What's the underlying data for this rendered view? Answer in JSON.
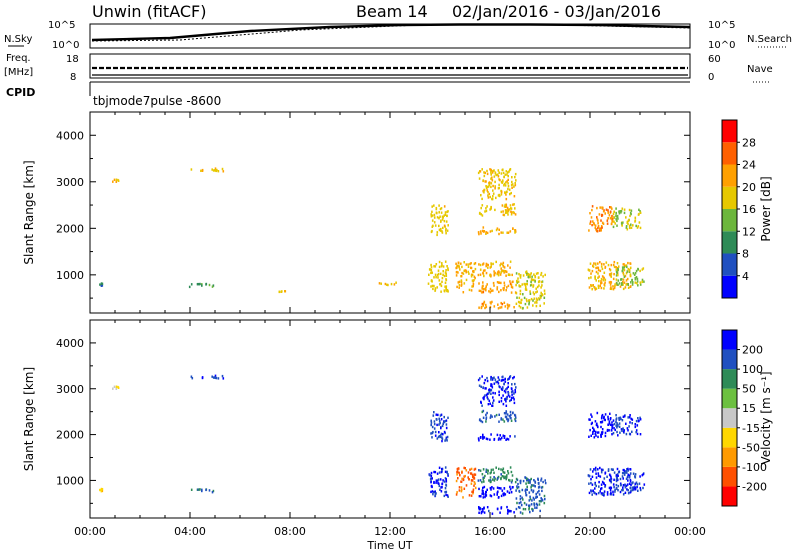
{
  "header": {
    "title": "Unwin (fitACF)",
    "beam": "Beam 14",
    "date_range": "02/Jan/2016 - 03/Jan/2016"
  },
  "top_panels": {
    "nsky_label": "N.Sky",
    "nsearch_label": "N.Search",
    "noise_ticks": [
      "10^5",
      "10^0"
    ],
    "freq_label_1": "Freq.",
    "freq_label_2": "[MHz]",
    "freq_ticks": [
      "18",
      "8"
    ],
    "nave_label": "Nave",
    "nave_ticks": [
      "60",
      "0"
    ],
    "cpid_label": "CPID",
    "cpid_value": "tbjmode7pulse  -8600"
  },
  "chart_data": [
    {
      "type": "heatmap",
      "name": "power",
      "ylabel": "Slant Range [km]",
      "xlabel": "",
      "xlim": [
        0,
        24
      ],
      "ylim": [
        180,
        4500
      ],
      "yticks": [
        "1000",
        "2000",
        "3000",
        "4000"
      ],
      "colorbar_label": "Power [dB]",
      "colorbar_ticks": [
        "4",
        "8",
        "12",
        "16",
        "20",
        "24",
        "28"
      ],
      "colorbar_range": [
        0,
        30
      ],
      "colors": [
        "#0000ff",
        "#2050c0",
        "#2e8b57",
        "#6cb63c",
        "#e6c800",
        "#ffa000",
        "#ff6000",
        "#ff0000"
      ],
      "blobs": [
        {
          "t": [
            0.3,
            0.5
          ],
          "r": [
            780,
            840
          ],
          "value": 8
        },
        {
          "t": [
            0.8,
            1.3
          ],
          "r": [
            3020,
            3080
          ],
          "value": 18
        },
        {
          "t": [
            3.9,
            5.3
          ],
          "r": [
            760,
            830
          ],
          "value": 10
        },
        {
          "t": [
            4.0,
            5.5
          ],
          "r": [
            3250,
            3320
          ],
          "value": 18
        },
        {
          "t": [
            7.5,
            7.8
          ],
          "r": [
            640,
            680
          ],
          "value": 18
        },
        {
          "t": [
            11.5,
            12.5
          ],
          "r": [
            800,
            860
          ],
          "value": 18
        },
        {
          "t": [
            13.5,
            14.3
          ],
          "r": [
            660,
            1320
          ],
          "value": 17
        },
        {
          "t": [
            13.6,
            14.3
          ],
          "r": [
            1880,
            2520
          ],
          "value": 17
        },
        {
          "t": [
            14.6,
            15.4
          ],
          "r": [
            650,
            1300
          ],
          "value": 19
        },
        {
          "t": [
            15.5,
            17.0
          ],
          "r": [
            300,
            450
          ],
          "value": 21
        },
        {
          "t": [
            15.5,
            17.0
          ],
          "r": [
            640,
            890
          ],
          "value": 21
        },
        {
          "t": [
            15.5,
            17.0
          ],
          "r": [
            980,
            1320
          ],
          "value": 19
        },
        {
          "t": [
            15.5,
            17.0
          ],
          "r": [
            1900,
            2050
          ],
          "value": 20
        },
        {
          "t": [
            15.5,
            17.0
          ],
          "r": [
            2300,
            2550
          ],
          "value": 18
        },
        {
          "t": [
            15.5,
            17.0
          ],
          "r": [
            2650,
            3300
          ],
          "value": 18
        },
        {
          "t": [
            17.0,
            18.2
          ],
          "r": [
            300,
            1100
          ],
          "value": 16
        },
        {
          "t": [
            19.9,
            20.9
          ],
          "r": [
            1960,
            2500
          ],
          "value": 22
        },
        {
          "t": [
            19.9,
            21.6
          ],
          "r": [
            700,
            1300
          ],
          "value": 19
        },
        {
          "t": [
            20.9,
            22.0
          ],
          "r": [
            2000,
            2450
          ],
          "value": 15
        },
        {
          "t": [
            21.0,
            22.2
          ],
          "r": [
            800,
            1200
          ],
          "value": 14
        }
      ]
    },
    {
      "type": "heatmap",
      "name": "velocity",
      "ylabel": "Slant Range [km]",
      "xlabel": "Time UT",
      "xlim": [
        0,
        24
      ],
      "ylim": [
        180,
        4500
      ],
      "xticks": [
        "00:00",
        "04:00",
        "08:00",
        "12:00",
        "16:00",
        "20:00",
        "00:00"
      ],
      "yticks": [
        "1000",
        "2000",
        "3000",
        "4000"
      ],
      "colorbar_label": "Velocity [m s⁻¹]",
      "colorbar_ticks": [
        "200",
        "100",
        "50",
        "15",
        "-15",
        "-50",
        "-100",
        "-200"
      ],
      "colorbar_range": [
        -250,
        250
      ],
      "colors": [
        "#ff0000",
        "#ff5000",
        "#ff9a00",
        "#ffd700",
        "#c8c8c8",
        "#6cc040",
        "#2e8b57",
        "#2050c0",
        "#0000ff"
      ],
      "blobs": [
        {
          "t": [
            0.3,
            0.5
          ],
          "r": [
            780,
            840
          ],
          "value": -60
        },
        {
          "t": [
            0.8,
            1.3
          ],
          "r": [
            3020,
            3080
          ],
          "value": -40
        },
        {
          "t": [
            3.9,
            5.3
          ],
          "r": [
            760,
            830
          ],
          "value": 150
        },
        {
          "t": [
            4.0,
            5.5
          ],
          "r": [
            3250,
            3320
          ],
          "value": 180
        },
        {
          "t": [
            13.5,
            14.3
          ],
          "r": [
            660,
            1320
          ],
          "value": 200
        },
        {
          "t": [
            13.6,
            14.3
          ],
          "r": [
            1880,
            2520
          ],
          "value": 180
        },
        {
          "t": [
            14.6,
            15.4
          ],
          "r": [
            650,
            1300
          ],
          "value": -150
        },
        {
          "t": [
            15.5,
            17.0
          ],
          "r": [
            300,
            450
          ],
          "value": 220
        },
        {
          "t": [
            15.5,
            17.0
          ],
          "r": [
            640,
            890
          ],
          "value": 230
        },
        {
          "t": [
            15.5,
            17.0
          ],
          "r": [
            980,
            1320
          ],
          "value": 120
        },
        {
          "t": [
            15.5,
            17.0
          ],
          "r": [
            1900,
            2050
          ],
          "value": 220
        },
        {
          "t": [
            15.5,
            17.0
          ],
          "r": [
            2300,
            2550
          ],
          "value": 160
        },
        {
          "t": [
            15.5,
            17.0
          ],
          "r": [
            2650,
            3300
          ],
          "value": 210
        },
        {
          "t": [
            17.0,
            18.2
          ],
          "r": [
            300,
            1100
          ],
          "value": 150
        },
        {
          "t": [
            19.9,
            20.9
          ],
          "r": [
            1960,
            2500
          ],
          "value": 230
        },
        {
          "t": [
            19.9,
            21.6
          ],
          "r": [
            700,
            1300
          ],
          "value": 200
        },
        {
          "t": [
            20.9,
            22.0
          ],
          "r": [
            2000,
            2450
          ],
          "value": 190
        },
        {
          "t": [
            21.0,
            22.2
          ],
          "r": [
            800,
            1200
          ],
          "value": 180
        }
      ]
    }
  ]
}
